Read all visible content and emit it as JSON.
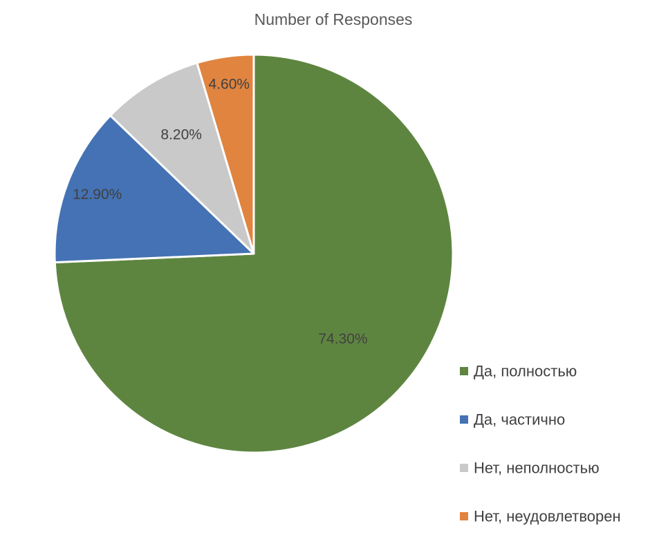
{
  "chart_data": {
    "type": "pie",
    "title": "Number of Responses",
    "categories": [
      "Да, полностью",
      "Да, частично",
      "Нет, неполностью",
      "Нет, неудовлетворен"
    ],
    "values": [
      74.3,
      12.9,
      8.2,
      4.6
    ],
    "data_labels": [
      "74.30%",
      "12.90%",
      "8.20%",
      "4.60%"
    ],
    "colors": [
      "#5E8540",
      "#4472B4",
      "#C9C9C9",
      "#E0843F"
    ],
    "start_angle_deg": 0,
    "direction": "clockwise",
    "legend_position": "right-bottom"
  }
}
